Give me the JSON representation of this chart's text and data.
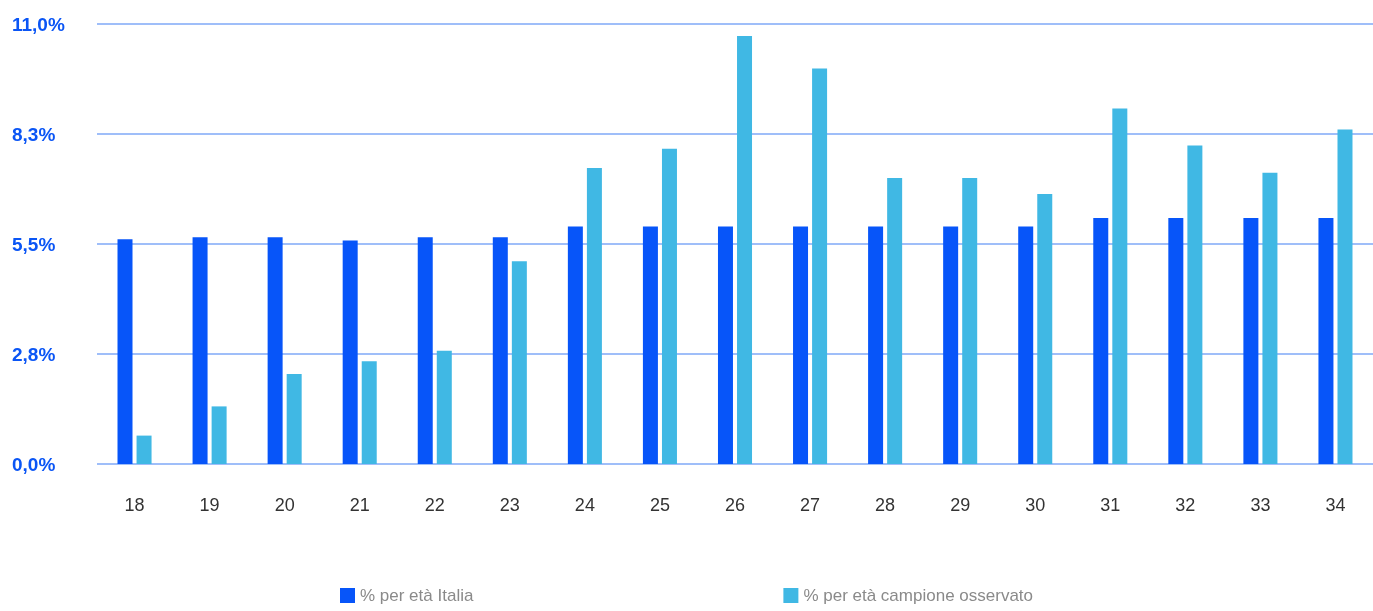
{
  "chart_data": {
    "type": "bar",
    "categories": [
      "18",
      "19",
      "20",
      "21",
      "22",
      "23",
      "24",
      "25",
      "26",
      "27",
      "28",
      "29",
      "30",
      "31",
      "32",
      "33",
      "34"
    ],
    "series": [
      {
        "name": "% per età Italia",
        "color": "#0755f9",
        "values": [
          5.62,
          5.67,
          5.67,
          5.59,
          5.67,
          5.67,
          5.94,
          5.94,
          5.94,
          5.94,
          5.94,
          5.94,
          5.94,
          6.15,
          6.15,
          6.15,
          6.15
        ]
      },
      {
        "name": "% per età campione osservato",
        "color": "#40b8e4",
        "values": [
          0.71,
          1.44,
          2.25,
          2.57,
          2.83,
          5.07,
          7.4,
          7.88,
          10.7,
          9.89,
          7.15,
          7.15,
          6.75,
          8.89,
          7.96,
          7.28,
          8.36
        ]
      }
    ],
    "ylim": [
      0,
      11
    ],
    "yticks": [
      {
        "value": 0,
        "label": "0,0%"
      },
      {
        "value": 2.75,
        "label": "2,8%"
      },
      {
        "value": 5.5,
        "label": "5,5%"
      },
      {
        "value": 8.25,
        "label": "8,3%"
      },
      {
        "value": 11,
        "label": "11,0%"
      }
    ],
    "grid": "y",
    "legend": "bottom"
  }
}
